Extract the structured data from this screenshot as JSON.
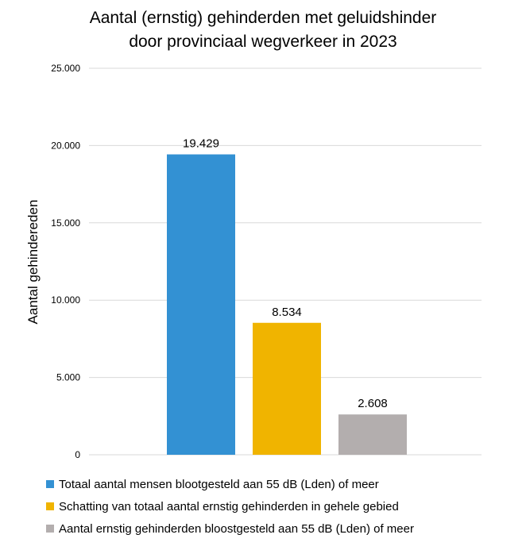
{
  "title": {
    "line1": "Aantal (ernstig) gehinderden met geluidshinder",
    "line2": "door provinciaal wegverkeer in 2023"
  },
  "chart_data": {
    "type": "bar",
    "ylabel": "Aantal gehindereden",
    "ylim": [
      0,
      25000
    ],
    "yticks": [
      0,
      5000,
      10000,
      15000,
      20000,
      25000
    ],
    "ytick_labels": [
      "0",
      "5.000",
      "10.000",
      "15.000",
      "20.000",
      "25.000"
    ],
    "grid": true,
    "legend_position": "bottom",
    "series": [
      {
        "name": "Totaal aantal mensen blootgesteld aan 55 dB (Lden) of meer",
        "value": 19429,
        "label": "19.429",
        "color": "#3391d3"
      },
      {
        "name": "Schatting van totaal aantal ernstig gehinderden in gehele gebied",
        "value": 8534,
        "label": "8.534",
        "color": "#f0b400"
      },
      {
        "name": "Aantal ernstig gehinderden bloostgesteld aan 55 dB (Lden) of meer",
        "value": 2608,
        "label": "2.608",
        "color": "#b3aeae"
      }
    ]
  }
}
